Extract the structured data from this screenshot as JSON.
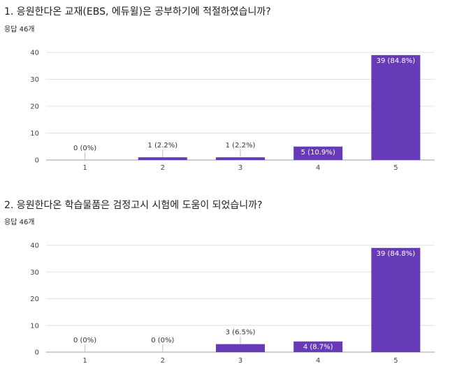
{
  "questions": [
    {
      "title": "1. 응원한다온 교재(EBS, 에듀윌)은 공부하기에 적절하였습니까?",
      "count": "응답 46개"
    },
    {
      "title": "2. 응원한다온 학습물품은 검정고시 시험에 도움이 되었습니까?",
      "count": "응답 46개"
    }
  ],
  "colors": {
    "bar": "#673ab7",
    "grid": "#e0e0e0",
    "axis": "#9e9e9e"
  },
  "chart_data": [
    {
      "type": "bar",
      "categories": [
        "1",
        "2",
        "3",
        "4",
        "5"
      ],
      "values": [
        0,
        1,
        1,
        5,
        39
      ],
      "labels": [
        "0 (0%)",
        "1 (2.2%)",
        "1 (2.2%)",
        "5 (10.9%)",
        "39 (84.8%)"
      ],
      "yticks": [
        0,
        10,
        20,
        30,
        40
      ],
      "ylim": [
        0,
        40
      ],
      "grid": true
    },
    {
      "type": "bar",
      "categories": [
        "1",
        "2",
        "3",
        "4",
        "5"
      ],
      "values": [
        0,
        0,
        3,
        4,
        39
      ],
      "labels": [
        "0 (0%)",
        "0 (0%)",
        "3 (6.5%)",
        "4 (8.7%)",
        "39 (84.8%)"
      ],
      "yticks": [
        0,
        10,
        20,
        30,
        40
      ],
      "ylim": [
        0,
        40
      ],
      "grid": true
    }
  ]
}
